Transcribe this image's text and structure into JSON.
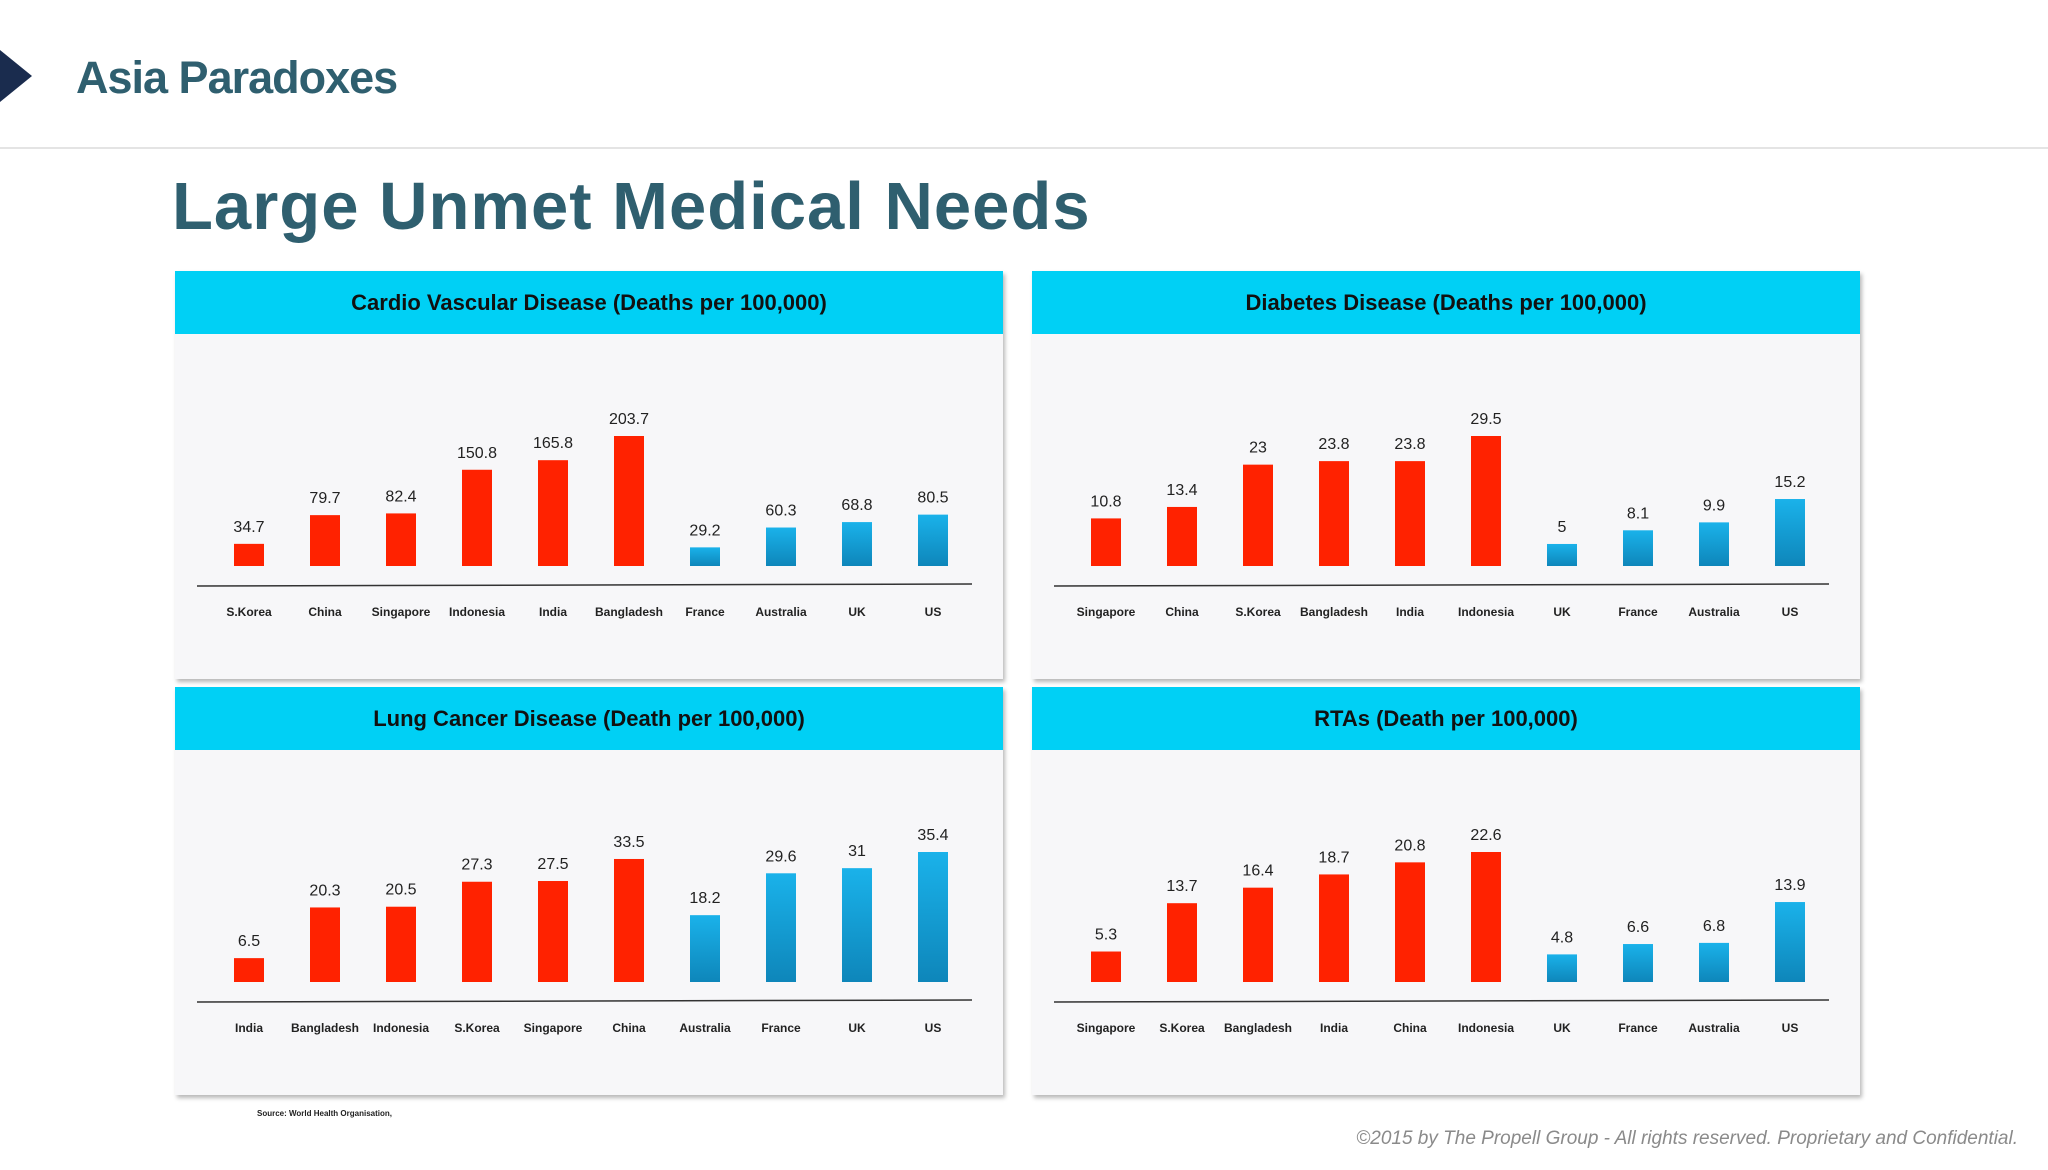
{
  "header": {
    "brand_title": "Asia Paradoxes"
  },
  "slide": {
    "title": "Large Unmet Medical Needs",
    "source_note": "Source: World Health Organisation,",
    "copyright": "©2015 by The Propell Group -  All rights reserved. Proprietary and Confidential."
  },
  "colors": {
    "accent_header": "#00d0f5",
    "title_teal": "#2f5f6f",
    "asia_bar_red": "#ff2200",
    "western_bar_blue": "#1aa0d8"
  },
  "chart_data": [
    {
      "type": "bar",
      "title": "Cardio Vascular Disease (Deaths per 100,000)",
      "categories": [
        "S.Korea",
        "China",
        "Singapore",
        "Indonesia",
        "India",
        "Bangladesh",
        "France",
        "Australia",
        "UK",
        "US"
      ],
      "values": [
        34.7,
        79.7,
        82.4,
        150.8,
        165.8,
        203.7,
        29.2,
        60.3,
        68.8,
        80.5
      ],
      "bar_colors": [
        "red",
        "red",
        "red",
        "red",
        "red",
        "red",
        "blue",
        "blue",
        "blue",
        "blue"
      ],
      "xlabel": "",
      "ylabel": "",
      "ylim": [
        0,
        203.7
      ],
      "grid": false,
      "legend": "none"
    },
    {
      "type": "bar",
      "title": "Diabetes Disease (Deaths per 100,000)",
      "categories": [
        "Singapore",
        "China",
        "S.Korea",
        "Bangladesh",
        "India",
        "Indonesia",
        "UK",
        "France",
        "Australia",
        "US"
      ],
      "values": [
        10.8,
        13.4,
        23,
        23.8,
        23.8,
        29.5,
        5,
        8.1,
        9.9,
        15.2
      ],
      "bar_colors": [
        "red",
        "red",
        "red",
        "red",
        "red",
        "red",
        "blue",
        "blue",
        "blue",
        "blue"
      ],
      "xlabel": "",
      "ylabel": "",
      "ylim": [
        0,
        29.5
      ],
      "grid": false,
      "legend": "none"
    },
    {
      "type": "bar",
      "title": "Lung Cancer Disease (Death per 100,000)",
      "categories": [
        "India",
        "Bangladesh",
        "Indonesia",
        "S.Korea",
        "Singapore",
        "China",
        "Australia",
        "France",
        "UK",
        "US"
      ],
      "values": [
        6.5,
        20.3,
        20.5,
        27.3,
        27.5,
        33.5,
        18.2,
        29.6,
        31,
        35.4
      ],
      "bar_colors": [
        "red",
        "red",
        "red",
        "red",
        "red",
        "red",
        "blue",
        "blue",
        "blue",
        "blue"
      ],
      "xlabel": "",
      "ylabel": "",
      "ylim": [
        0,
        35.4
      ],
      "grid": false,
      "legend": "none"
    },
    {
      "type": "bar",
      "title": "RTAs (Death per 100,000)",
      "categories": [
        "Singapore",
        "S.Korea",
        "Bangladesh",
        "India",
        "China",
        "Indonesia",
        "UK",
        "France",
        "Australia",
        "US"
      ],
      "values": [
        5.3,
        13.7,
        16.4,
        18.7,
        20.8,
        22.6,
        4.8,
        6.6,
        6.8,
        13.9
      ],
      "bar_colors": [
        "red",
        "red",
        "red",
        "red",
        "red",
        "red",
        "blue",
        "blue",
        "blue",
        "blue"
      ],
      "xlabel": "",
      "ylabel": "",
      "ylim": [
        0,
        22.6
      ],
      "grid": false,
      "legend": "none"
    }
  ]
}
